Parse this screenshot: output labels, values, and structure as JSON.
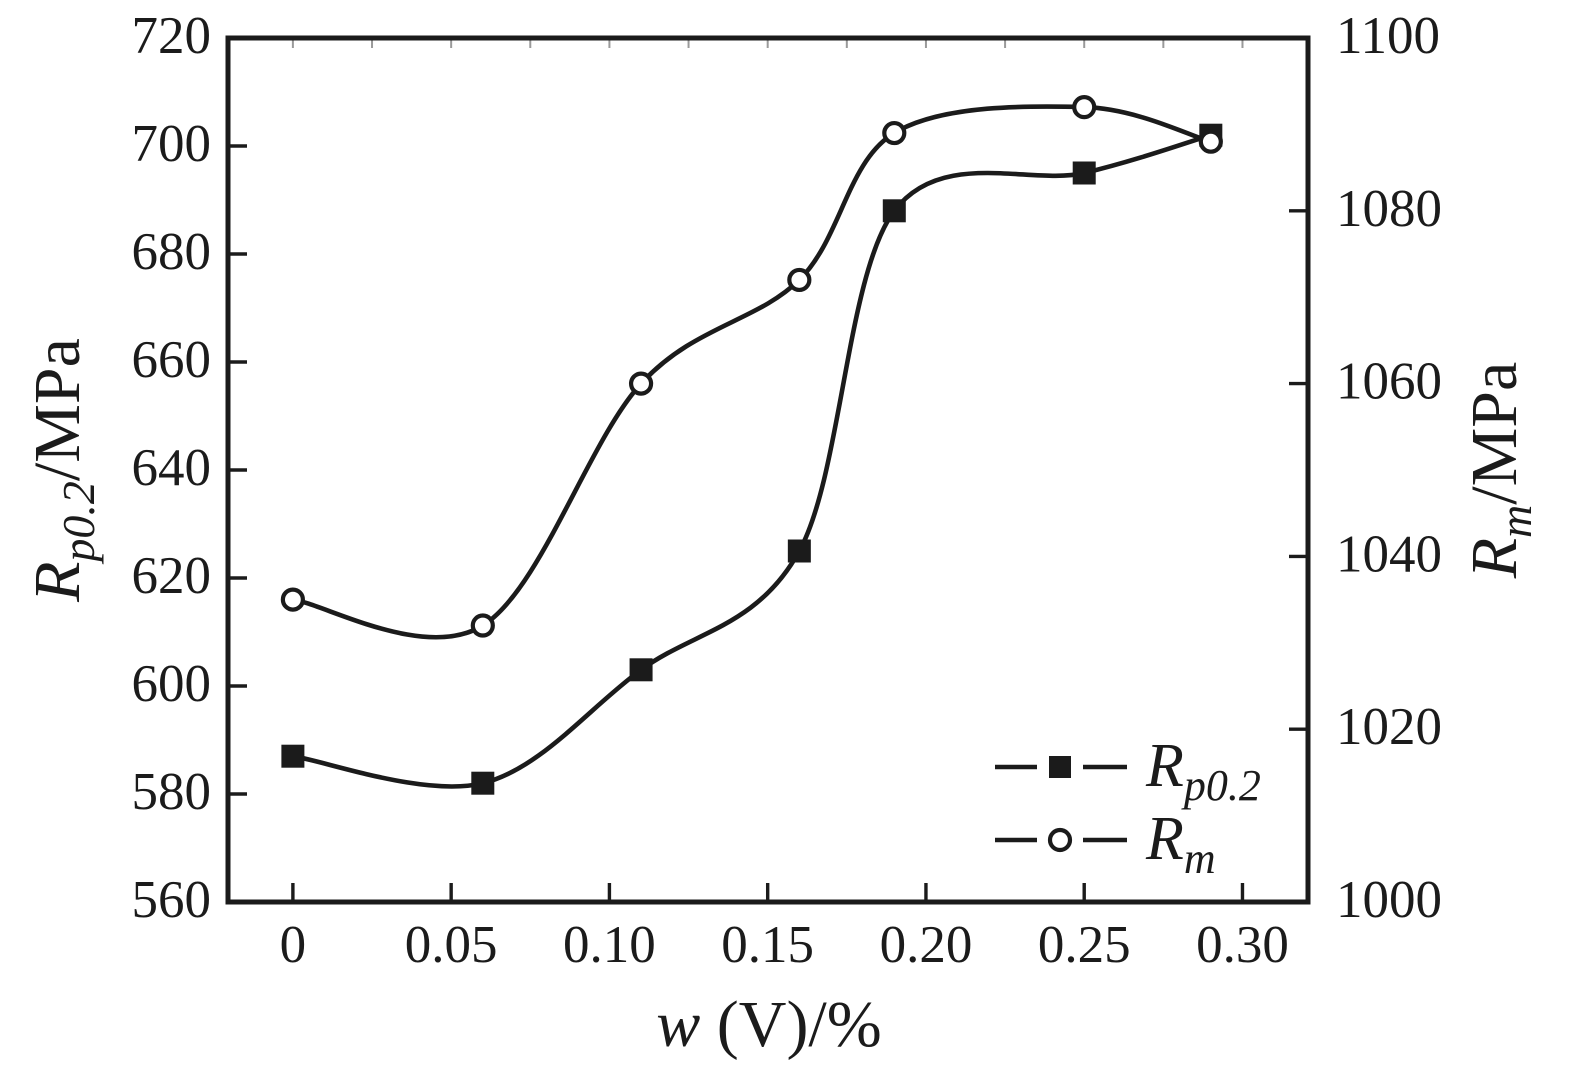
{
  "figure": {
    "background_color": "#ffffff",
    "ink_color": "#1b1b1b",
    "minor_tick_color": "#9a9a9a"
  },
  "chart_data": {
    "type": "line",
    "grid": false,
    "x": [
      0,
      0.06,
      0.11,
      0.16,
      0.19,
      0.25,
      0.29
    ],
    "series": [
      {
        "name": "Rp0.2",
        "axis": "left",
        "marker": "filled-square",
        "values": [
          587,
          582,
          603,
          625,
          688,
          695,
          702
        ]
      },
      {
        "name": "Rm",
        "axis": "right",
        "marker": "open-circle",
        "values": [
          1035,
          1032,
          1060,
          1072,
          1089,
          1092,
          1088
        ]
      }
    ],
    "x_axis": {
      "title_italic": "w",
      "title_rest": " (V)/%",
      "ticks": [
        0,
        0.05,
        0.1,
        0.15,
        0.2,
        0.25,
        0.3
      ],
      "tick_labels": [
        "0",
        "0.05",
        "0.10",
        "0.15",
        "0.20",
        "0.25",
        "0.30"
      ],
      "range": [
        -0.0205,
        0.3207
      ],
      "top_minor_tick_step": 0.025
    },
    "left_axis": {
      "title_main": "R",
      "title_sub": "p0.2",
      "title_rest": "/MPa",
      "ticks": [
        720,
        700,
        680,
        660,
        640,
        620,
        600,
        580,
        560
      ],
      "tick_labels": [
        "720",
        "700",
        "680",
        "660",
        "640",
        "620",
        "600",
        "580",
        "560"
      ],
      "range": [
        560,
        720
      ]
    },
    "right_axis": {
      "title_main": "R",
      "title_sub": "m",
      "title_rest": "/MPa",
      "ticks": [
        1100,
        1080,
        1060,
        1040,
        1020,
        1000
      ],
      "tick_labels": [
        "1100",
        "1080",
        "1060",
        "1040",
        "1020",
        "1000"
      ],
      "range": [
        1000,
        1100
      ]
    },
    "legend": {
      "position": "inside-bottom-right",
      "entries": [
        {
          "series": "Rp0.2",
          "label_main": "R",
          "label_sub": "p0.2",
          "marker": "filled-square"
        },
        {
          "series": "Rm",
          "label_main": "R",
          "label_sub": "m",
          "marker": "open-circle"
        }
      ]
    }
  }
}
